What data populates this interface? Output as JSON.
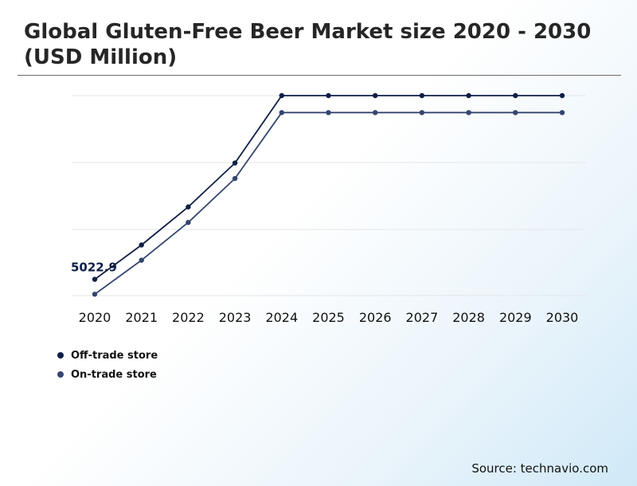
{
  "header": {
    "title": "Global Gluten-Free Beer Market size 2020 - 2030 (USD Million)"
  },
  "footer": {
    "source": "Source: technavio.com"
  },
  "colors": {
    "off_trade": "#0f1f45",
    "on_trade": "#34466f",
    "grid": "#e3e6ea"
  },
  "chart_data": {
    "type": "line",
    "title": "Global Gluten-Free Beer Market size 2020 - 2030 (USD Million)",
    "xlabel": "",
    "ylabel": "",
    "categories": [
      "2020",
      "2021",
      "2022",
      "2023",
      "2024",
      "2025",
      "2026",
      "2027",
      "2028",
      "2029",
      "2030"
    ],
    "series": [
      {
        "name": "Off-trade store",
        "color": "#0f1f45",
        "values": [
          5022.9,
          5140,
          5270,
          5420,
          5650,
          5650,
          5650,
          5650,
          5650,
          5650,
          5650
        ]
      },
      {
        "name": "On-trade store",
        "color": "#34466f",
        "values": [
          4972,
          5088,
          5217,
          5367,
          5592,
          5592,
          5592,
          5592,
          5592,
          5592,
          5592
        ]
      }
    ],
    "annotations": [
      {
        "series": 0,
        "index": 0,
        "text": "5022.9"
      }
    ],
    "ylim": [
      4970,
      5650
    ],
    "grid": true,
    "legend_position": "bottom-left"
  }
}
